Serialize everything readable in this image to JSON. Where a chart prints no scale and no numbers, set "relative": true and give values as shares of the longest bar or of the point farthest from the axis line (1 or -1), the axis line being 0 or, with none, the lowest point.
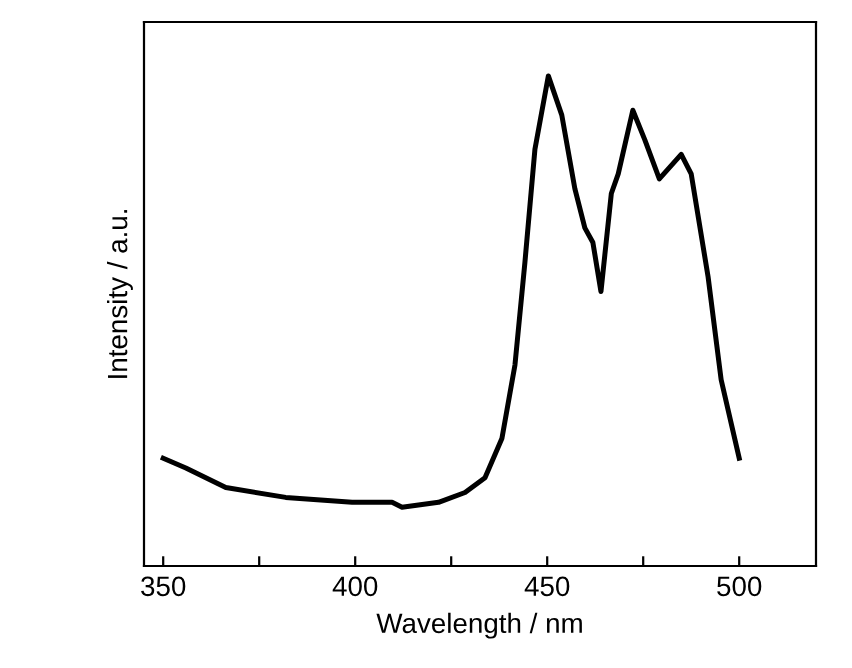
{
  "chart_data": {
    "type": "line",
    "xlabel": "Wavelength / nm",
    "ylabel": "Intensity / a.u.",
    "relative": true,
    "xlim": [
      345,
      520
    ],
    "xticks": [
      350,
      {
        "value": 375,
        "label": null
      },
      400,
      {
        "value": 425,
        "label": null
      },
      450,
      {
        "value": 475,
        "label": null
      },
      500
    ],
    "tick_labels": "x",
    "grid": false,
    "legend": false,
    "marker": "none",
    "line_style": "solid",
    "series": [
      {
        "color": "#000000",
        "x": [
          350,
          355.9,
          366.3,
          381.9,
          399.2,
          409.6,
          412.2,
          421.7,
          428.6,
          433.8,
          438.2,
          441.6,
          444.2,
          446.8,
          450.3,
          453.8,
          457.2,
          459.8,
          461.9,
          464.0,
          466.7,
          468.5,
          472.3,
          475.4,
          479.2,
          484.9,
          487.5,
          491.9,
          495.3,
          500
        ],
        "values": [
          0.22,
          0.2,
          0.16,
          0.14,
          0.13,
          0.13,
          0.12,
          0.13,
          0.15,
          0.18,
          0.26,
          0.41,
          0.62,
          0.85,
          1.0,
          0.92,
          0.77,
          0.69,
          0.66,
          0.56,
          0.76,
          0.8,
          0.93,
          0.87,
          0.79,
          0.84,
          0.8,
          0.59,
          0.38,
          0.22
        ]
      }
    ]
  }
}
